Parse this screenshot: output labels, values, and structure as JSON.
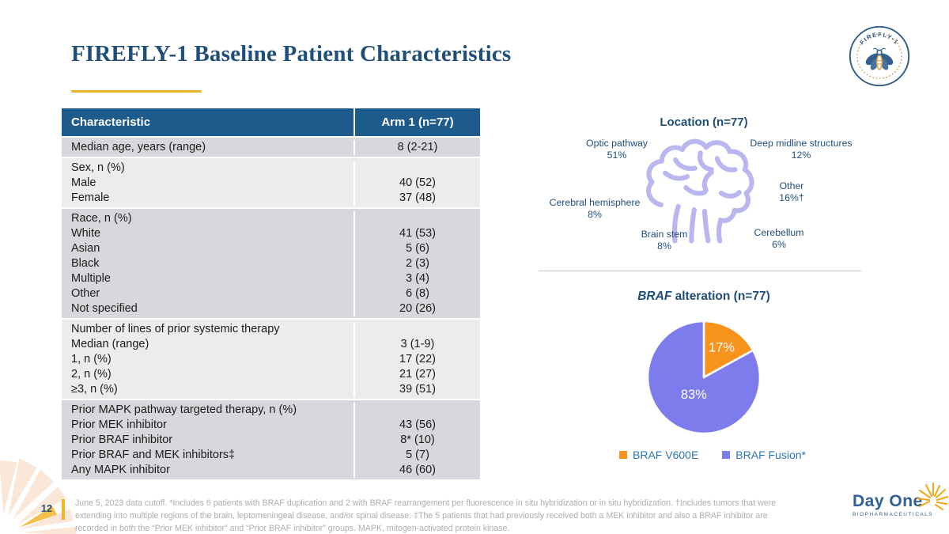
{
  "slide": {
    "title": "FIREFLY-1 Baseline Patient Characteristics",
    "page_number": "12",
    "footnote": "June 5, 2023 data cutoff. *Includes 6 patients with BRAF duplication and 2 with BRAF rearrangement per fluorescence in situ hybridization or in situ hybridization. †Includes tumors that were extending into multiple regions of the brain, leptomeningeal disease, and/or spinal disease. ‡The 5 patients that had previously received both a MEK inhibitor and also a BRAF inhibitor are recorded in both the “Prior MEK inhibitor” and “Prior BRAF inhibitor” groups. MAPK, mitogen-activated protein kinase.",
    "colors": {
      "navy": "#1F4E79",
      "table_header_blue": "#1E5B8D",
      "gold": "#F0B429",
      "row_dark": "#D8D8DC",
      "row_light": "#ECECEE",
      "pie_orange": "#F7941E",
      "pie_purple": "#7D7CEC",
      "legend_text_blue": "#2E75B6",
      "brain_purple": "#B9B6F0"
    }
  },
  "logos": {
    "firefly": {
      "label": "FIREFLY-1"
    },
    "dayone": {
      "name": "Day One",
      "sub": "BIOPHARMACEUTICALS"
    }
  },
  "table": {
    "headers": [
      "Characteristic",
      "Arm 1 (n=77)"
    ],
    "groups": [
      {
        "rows": [
          [
            "Median age, years (range)",
            "8 (2-21)"
          ]
        ]
      },
      {
        "rows": [
          [
            "Sex, n (%)",
            ""
          ],
          [
            "Male",
            "40 (52)"
          ],
          [
            "Female",
            "37 (48)"
          ]
        ]
      },
      {
        "rows": [
          [
            "Race, n (%)",
            ""
          ],
          [
            "White",
            "41 (53)"
          ],
          [
            "Asian",
            "5 (6)"
          ],
          [
            "Black",
            "2 (3)"
          ],
          [
            "Multiple",
            "3 (4)"
          ],
          [
            "Other",
            "6 (8)"
          ],
          [
            "Not specified",
            "20 (26)"
          ]
        ]
      },
      {
        "rows": [
          [
            "Number of lines of prior systemic therapy",
            ""
          ],
          [
            "Median (range)",
            "3 (1-9)"
          ],
          [
            "1, n (%)",
            "17 (22)"
          ],
          [
            "2, n (%)",
            "21 (27)"
          ],
          [
            "≥3, n (%)",
            "39 (51)"
          ]
        ]
      },
      {
        "rows": [
          [
            "Prior MAPK pathway targeted therapy, n (%)",
            ""
          ],
          [
            "Prior MEK inhibitor",
            "43 (56)"
          ],
          [
            "Prior BRAF inhibitor",
            "8* (10)"
          ],
          [
            "Prior BRAF and MEK inhibitors‡",
            "5 (7)"
          ],
          [
            "Any MAPK inhibitor",
            "46 (60)"
          ]
        ]
      }
    ]
  },
  "chart_data": [
    {
      "type": "diagram",
      "title": "Location (n=77)",
      "categories": [
        "Optic pathway",
        "Deep midline structures",
        "Cerebral hemisphere",
        "Other",
        "Brain stem",
        "Cerebellum"
      ],
      "values": [
        51,
        12,
        8,
        16,
        8,
        6
      ],
      "value_labels": [
        "51%",
        "12%",
        "8%",
        "16%†",
        "8%",
        "6%"
      ]
    },
    {
      "type": "pie",
      "title_italic": "BRAF",
      "title_rest": " alteration (n=77)",
      "categories": [
        "BRAF V600E",
        "BRAF Fusion*"
      ],
      "values": [
        17,
        83
      ],
      "labels": [
        "17%",
        "83%"
      ],
      "colors": [
        "#F7941E",
        "#7D7CEC"
      ],
      "legend_position": "bottom"
    }
  ]
}
